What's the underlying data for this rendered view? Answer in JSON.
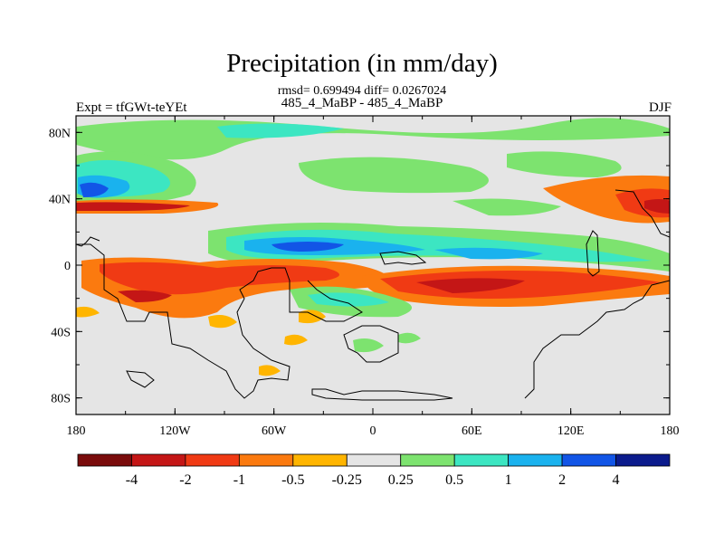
{
  "title": "Precipitation (in mm/day)",
  "stats": "rmsd= 0.699494 diff= 0.0267024",
  "subtitle": "485_4_MaBP - 485_4_MaBP",
  "left_label": "Expt = tfGWt-teYEt",
  "right_label": "DJF",
  "colors": {
    "background_field": "#e5e5e5",
    "neg4": "#7a0c0c",
    "neg2": "#c41616",
    "neg1": "#f03a14",
    "neg05": "#fb7a0f",
    "neg025": "#ffb500",
    "pos025": "#e5e5e5",
    "pos05": "#7de36f",
    "pos1": "#3ce6c2",
    "pos2": "#1ab2ee",
    "pos4": "#1255e6",
    "pos_max": "#0b1b8c"
  },
  "colorbar": {
    "colors": [
      "#7a0c0c",
      "#c41616",
      "#f03a14",
      "#fb7a0f",
      "#ffb500",
      "#e5e5e5",
      "#7de36f",
      "#3ce6c2",
      "#1ab2ee",
      "#1255e6",
      "#0b1b8c"
    ],
    "labels": [
      "-4",
      "-2",
      "-1",
      "-0.5",
      "-0.25",
      "0.25",
      "0.5",
      "1",
      "2",
      "4"
    ]
  },
  "chart_data": {
    "type": "heatmap",
    "title": "Precipitation (in mm/day)",
    "lon_ticks": [
      "180",
      "120W",
      "60W",
      "0",
      "60E",
      "120E",
      "180"
    ],
    "lat_ticks": [
      "80N",
      "40N",
      "0",
      "40S",
      "80S"
    ],
    "lon_range": [
      -180,
      180
    ],
    "lat_range": [
      -90,
      90
    ],
    "season": "DJF",
    "levels": [
      -4,
      -2,
      -1,
      -0.5,
      -0.25,
      0.25,
      0.5,
      1,
      2,
      4
    ]
  }
}
